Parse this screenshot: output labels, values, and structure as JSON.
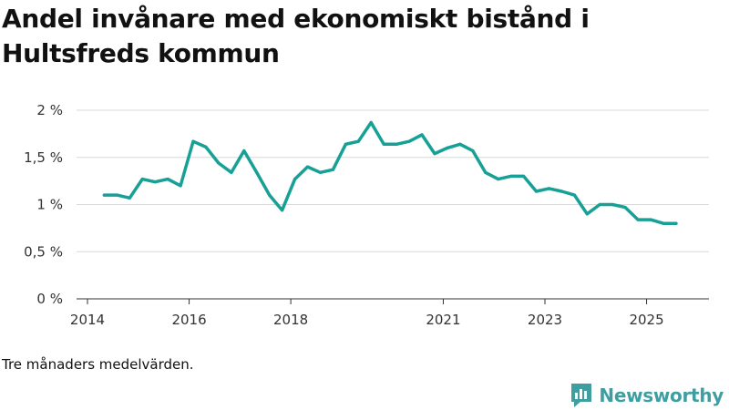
{
  "header": {
    "title": "Andel invånare med ekonomiskt bistånd i Hultsfreds kommun"
  },
  "chart_data": {
    "type": "line",
    "title": "Andel invånare med ekonomiskt bistånd i Hultsfreds kommun",
    "xlabel": "",
    "ylabel": "",
    "ylim": [
      0,
      2
    ],
    "xlim": [
      2014,
      2026.2
    ],
    "y_ticks": [
      {
        "value": 0,
        "label": "0 %"
      },
      {
        "value": 0.5,
        "label": "0,5 %"
      },
      {
        "value": 1,
        "label": "1 %"
      },
      {
        "value": 1.5,
        "label": "1,5 %"
      },
      {
        "value": 2,
        "label": "2 %"
      }
    ],
    "x_ticks": [
      {
        "value": 2014,
        "label": "2014"
      },
      {
        "value": 2016,
        "label": "2016"
      },
      {
        "value": 2018,
        "label": "2018"
      },
      {
        "value": 2021,
        "label": "2021"
      },
      {
        "value": 2023,
        "label": "2023"
      },
      {
        "value": 2025,
        "label": "2025"
      }
    ],
    "grid": true,
    "color": "#17a096",
    "series": [
      {
        "name": "Andel invånare med ekonomiskt bistånd",
        "x": [
          2014.33,
          2014.58,
          2014.83,
          2015.08,
          2015.33,
          2015.58,
          2015.83,
          2016.08,
          2016.33,
          2016.58,
          2016.83,
          2017.08,
          2017.33,
          2017.58,
          2017.83,
          2018.08,
          2018.33,
          2018.58,
          2018.83,
          2019.08,
          2019.33,
          2019.58,
          2019.83,
          2020.08,
          2020.33,
          2020.58,
          2020.83,
          2021.08,
          2021.33,
          2021.58,
          2021.83,
          2022.08,
          2022.33,
          2022.58,
          2022.83,
          2023.08,
          2023.33,
          2023.58,
          2023.83,
          2024.08,
          2024.33,
          2024.58,
          2024.83,
          2025.08,
          2025.33,
          2025.58
        ],
        "values": [
          1.1,
          1.1,
          1.07,
          1.27,
          1.24,
          1.27,
          1.2,
          1.67,
          1.61,
          1.44,
          1.34,
          1.57,
          1.34,
          1.1,
          0.94,
          1.27,
          1.4,
          1.34,
          1.37,
          1.64,
          1.67,
          1.87,
          1.64,
          1.64,
          1.67,
          1.74,
          1.54,
          1.6,
          1.64,
          1.57,
          1.34,
          1.27,
          1.3,
          1.3,
          1.14,
          1.17,
          1.14,
          1.1,
          0.9,
          1.0,
          1.0,
          0.97,
          0.84,
          0.84,
          0.8,
          0.8
        ]
      }
    ]
  },
  "footer": {
    "caption": "Tre månaders medelvärden.",
    "brand": "Newsworthy",
    "brand_color": "#3f9fa0"
  }
}
